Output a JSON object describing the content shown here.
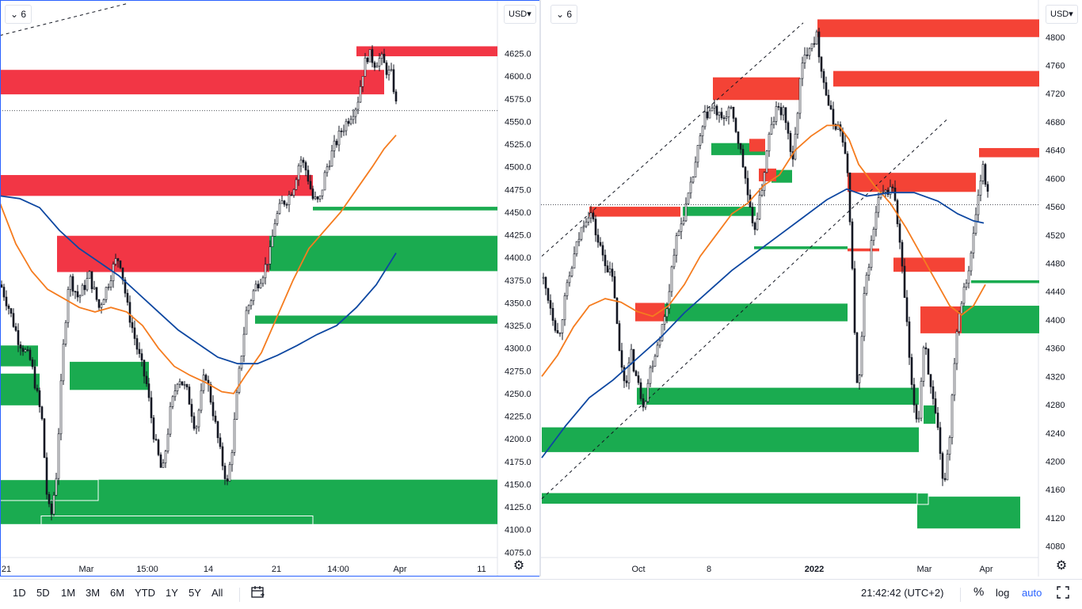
{
  "left_chart": {
    "interval": "6",
    "currency": "USD",
    "last_price_line": 4562,
    "chart_data": {
      "type": "candlestick",
      "y_ticks": [
        4075,
        4100,
        4125,
        4150,
        4175,
        4200,
        4225,
        4250,
        4275,
        4300,
        4325,
        4350,
        4375,
        4400,
        4425,
        4450,
        4475,
        4500,
        4525,
        4550,
        4575,
        4600,
        4625
      ],
      "ylim": [
        4070,
        4650
      ],
      "x_ticks": [
        "21",
        "Mar",
        "15:00",
        "14",
        "21",
        "14:00",
        "Apr",
        "11"
      ],
      "price_path": [
        [
          0,
          4370
        ],
        [
          10,
          4345
        ],
        [
          22,
          4310
        ],
        [
          38,
          4285
        ],
        [
          52,
          4220
        ],
        [
          58,
          4140
        ],
        [
          63,
          4110
        ],
        [
          70,
          4160
        ],
        [
          78,
          4290
        ],
        [
          86,
          4380
        ],
        [
          98,
          4355
        ],
        [
          112,
          4380
        ],
        [
          124,
          4345
        ],
        [
          135,
          4370
        ],
        [
          144,
          4395
        ],
        [
          150,
          4400
        ],
        [
          160,
          4345
        ],
        [
          172,
          4300
        ],
        [
          184,
          4260
        ],
        [
          194,
          4200
        ],
        [
          204,
          4160
        ],
        [
          214,
          4230
        ],
        [
          224,
          4270
        ],
        [
          236,
          4250
        ],
        [
          246,
          4210
        ],
        [
          258,
          4275
        ],
        [
          268,
          4230
        ],
        [
          278,
          4180
        ],
        [
          286,
          4150
        ],
        [
          292,
          4190
        ],
        [
          300,
          4265
        ],
        [
          310,
          4340
        ],
        [
          320,
          4365
        ],
        [
          332,
          4385
        ],
        [
          340,
          4405
        ],
        [
          346,
          4440
        ],
        [
          355,
          4460
        ],
        [
          362,
          4465
        ],
        [
          370,
          4480
        ],
        [
          378,
          4510
        ],
        [
          386,
          4495
        ],
        [
          394,
          4465
        ],
        [
          402,
          4460
        ],
        [
          410,
          4495
        ],
        [
          420,
          4520
        ],
        [
          430,
          4540
        ],
        [
          440,
          4555
        ],
        [
          450,
          4570
        ],
        [
          458,
          4610
        ],
        [
          464,
          4625
        ],
        [
          472,
          4615
        ],
        [
          480,
          4620
        ],
        [
          488,
          4605
        ],
        [
          494,
          4600
        ],
        [
          500,
          4562
        ]
      ],
      "ma_orange": [
        [
          0,
          4460
        ],
        [
          20,
          4415
        ],
        [
          40,
          4385
        ],
        [
          60,
          4365
        ],
        [
          80,
          4355
        ],
        [
          100,
          4345
        ],
        [
          120,
          4340
        ],
        [
          140,
          4345
        ],
        [
          160,
          4340
        ],
        [
          180,
          4325
        ],
        [
          200,
          4300
        ],
        [
          220,
          4280
        ],
        [
          240,
          4270
        ],
        [
          260,
          4262
        ],
        [
          280,
          4252
        ],
        [
          295,
          4250
        ],
        [
          310,
          4270
        ],
        [
          330,
          4295
        ],
        [
          350,
          4335
        ],
        [
          370,
          4375
        ],
        [
          390,
          4410
        ],
        [
          410,
          4430
        ],
        [
          430,
          4450
        ],
        [
          450,
          4475
        ],
        [
          470,
          4500
        ],
        [
          485,
          4520
        ],
        [
          500,
          4535
        ]
      ],
      "ma_blue": [
        [
          0,
          4468
        ],
        [
          25,
          4465
        ],
        [
          50,
          4455
        ],
        [
          75,
          4430
        ],
        [
          100,
          4410
        ],
        [
          125,
          4395
        ],
        [
          150,
          4380
        ],
        [
          175,
          4360
        ],
        [
          200,
          4340
        ],
        [
          225,
          4320
        ],
        [
          250,
          4305
        ],
        [
          275,
          4290
        ],
        [
          300,
          4283
        ],
        [
          325,
          4283
        ],
        [
          350,
          4292
        ],
        [
          375,
          4303
        ],
        [
          400,
          4315
        ],
        [
          425,
          4325
        ],
        [
          450,
          4345
        ],
        [
          475,
          4370
        ],
        [
          500,
          4405
        ]
      ],
      "supply_zones": [
        {
          "x1": 450,
          "x2": 628,
          "lo": 4622,
          "hi": 4633
        },
        {
          "x1": 0,
          "x2": 485,
          "lo": 4580,
          "hi": 4607
        },
        {
          "x1": 0,
          "x2": 395,
          "lo": 4468,
          "hi": 4491
        },
        {
          "x1": 72,
          "x2": 340,
          "lo": 4384,
          "hi": 4424
        }
      ],
      "demand_zones": [
        {
          "x1": 340,
          "x2": 628,
          "lo": 4385,
          "hi": 4424
        },
        {
          "x1": 395,
          "x2": 628,
          "lo": 4452,
          "hi": 4456
        },
        {
          "x1": 322,
          "x2": 628,
          "lo": 4327,
          "hi": 4336
        },
        {
          "x1": 0,
          "x2": 48,
          "lo": 4280,
          "hi": 4303
        },
        {
          "x1": 88,
          "x2": 188,
          "lo": 4254,
          "hi": 4285
        },
        {
          "x1": 0,
          "x2": 50,
          "lo": 4237,
          "hi": 4272
        },
        {
          "x1": 0,
          "x2": 628,
          "lo": 4106,
          "hi": 4155
        }
      ],
      "outline_boxes": [
        {
          "x1": 0,
          "x2": 124,
          "lo": 4132,
          "hi": 4155
        },
        {
          "x1": 52,
          "x2": 395,
          "lo": 4101,
          "hi": 4115
        }
      ],
      "trend_lines": [
        {
          "x1": 0,
          "y1": 4645,
          "x2": 160,
          "y2": 4680
        }
      ]
    }
  },
  "right_chart": {
    "interval": "6",
    "currency": "USD",
    "last_price_line": 4563,
    "chart_data": {
      "type": "candlestick",
      "y_ticks": [
        4080,
        4120,
        4160,
        4200,
        4240,
        4280,
        4320,
        4360,
        4400,
        4440,
        4480,
        4520,
        4560,
        4600,
        4640,
        4680,
        4720,
        4760,
        4800
      ],
      "ylim": [
        4065,
        4830
      ],
      "x_ticks": [
        "Oct",
        "8",
        "2022",
        "Mar",
        "Apr"
      ],
      "price_path": [
        [
          0,
          4460
        ],
        [
          10,
          4420
        ],
        [
          20,
          4375
        ],
        [
          30,
          4440
        ],
        [
          42,
          4500
        ],
        [
          52,
          4540
        ],
        [
          60,
          4555
        ],
        [
          70,
          4510
        ],
        [
          80,
          4480
        ],
        [
          90,
          4450
        ],
        [
          96,
          4360
        ],
        [
          104,
          4310
        ],
        [
          112,
          4350
        ],
        [
          120,
          4310
        ],
        [
          128,
          4280
        ],
        [
          136,
          4330
        ],
        [
          146,
          4370
        ],
        [
          156,
          4410
        ],
        [
          166,
          4500
        ],
        [
          176,
          4540
        ],
        [
          186,
          4580
        ],
        [
          196,
          4640
        ],
        [
          206,
          4690
        ],
        [
          216,
          4700
        ],
        [
          226,
          4680
        ],
        [
          236,
          4700
        ],
        [
          246,
          4660
        ],
        [
          256,
          4600
        ],
        [
          266,
          4520
        ],
        [
          276,
          4580
        ],
        [
          286,
          4660
        ],
        [
          296,
          4700
        ],
        [
          306,
          4690
        ],
        [
          316,
          4620
        ],
        [
          326,
          4750
        ],
        [
          336,
          4790
        ],
        [
          346,
          4800
        ],
        [
          356,
          4730
        ],
        [
          366,
          4680
        ],
        [
          376,
          4670
        ],
        [
          386,
          4600
        ],
        [
          392,
          4440
        ],
        [
          398,
          4280
        ],
        [
          406,
          4430
        ],
        [
          414,
          4500
        ],
        [
          424,
          4570
        ],
        [
          434,
          4580
        ],
        [
          442,
          4590
        ],
        [
          450,
          4520
        ],
        [
          458,
          4420
        ],
        [
          466,
          4300
        ],
        [
          474,
          4250
        ],
        [
          482,
          4380
        ],
        [
          490,
          4300
        ],
        [
          498,
          4250
        ],
        [
          506,
          4160
        ],
        [
          514,
          4240
        ],
        [
          522,
          4380
        ],
        [
          530,
          4440
        ],
        [
          540,
          4480
        ],
        [
          548,
          4560
        ],
        [
          556,
          4620
        ],
        [
          564,
          4563
        ]
      ],
      "ma_orange": [
        [
          0,
          4320
        ],
        [
          20,
          4350
        ],
        [
          40,
          4390
        ],
        [
          60,
          4420
        ],
        [
          80,
          4430
        ],
        [
          100,
          4425
        ],
        [
          120,
          4412
        ],
        [
          140,
          4405
        ],
        [
          160,
          4420
        ],
        [
          180,
          4450
        ],
        [
          200,
          4490
        ],
        [
          220,
          4520
        ],
        [
          240,
          4550
        ],
        [
          260,
          4565
        ],
        [
          280,
          4590
        ],
        [
          300,
          4605
        ],
        [
          320,
          4640
        ],
        [
          340,
          4660
        ],
        [
          360,
          4675
        ],
        [
          375,
          4675
        ],
        [
          388,
          4655
        ],
        [
          400,
          4620
        ],
        [
          420,
          4590
        ],
        [
          440,
          4565
        ],
        [
          460,
          4530
        ],
        [
          480,
          4490
        ],
        [
          500,
          4450
        ],
        [
          515,
          4420
        ],
        [
          530,
          4407
        ],
        [
          545,
          4420
        ],
        [
          560,
          4450
        ]
      ],
      "ma_blue": [
        [
          0,
          4205
        ],
        [
          30,
          4250
        ],
        [
          60,
          4290
        ],
        [
          90,
          4315
        ],
        [
          120,
          4345
        ],
        [
          150,
          4375
        ],
        [
          180,
          4410
        ],
        [
          210,
          4440
        ],
        [
          240,
          4470
        ],
        [
          270,
          4495
        ],
        [
          300,
          4520
        ],
        [
          330,
          4545
        ],
        [
          360,
          4570
        ],
        [
          385,
          4585
        ],
        [
          410,
          4575
        ],
        [
          440,
          4580
        ],
        [
          470,
          4580
        ],
        [
          500,
          4568
        ],
        [
          525,
          4550
        ],
        [
          545,
          4540
        ],
        [
          558,
          4537
        ]
      ],
      "supply_zones": [
        {
          "x1": 348,
          "x2": 628,
          "lo": 4800,
          "hi": 4825
        },
        {
          "x1": 368,
          "x2": 628,
          "lo": 4730,
          "hi": 4752
        },
        {
          "x1": 216,
          "x2": 326,
          "lo": 4711,
          "hi": 4743
        },
        {
          "x1": 552,
          "x2": 628,
          "lo": 4630,
          "hi": 4643
        },
        {
          "x1": 262,
          "x2": 282,
          "lo": 4638,
          "hi": 4656
        },
        {
          "x1": 274,
          "x2": 296,
          "lo": 4596,
          "hi": 4614
        },
        {
          "x1": 386,
          "x2": 548,
          "lo": 4581,
          "hi": 4608
        },
        {
          "x1": 60,
          "x2": 175,
          "lo": 4546,
          "hi": 4560
        },
        {
          "x1": 386,
          "x2": 426,
          "lo": 4497,
          "hi": 4501
        },
        {
          "x1": 444,
          "x2": 534,
          "lo": 4468,
          "hi": 4488
        },
        {
          "x1": 118,
          "x2": 155,
          "lo": 4398,
          "hi": 4424
        },
        {
          "x1": 478,
          "x2": 530,
          "lo": 4381,
          "hi": 4419
        }
      ],
      "demand_zones": [
        {
          "x1": 214,
          "x2": 282,
          "lo": 4633,
          "hi": 4650
        },
        {
          "x1": 178,
          "x2": 270,
          "lo": 4547,
          "hi": 4560
        },
        {
          "x1": 268,
          "x2": 386,
          "lo": 4500,
          "hi": 4504
        },
        {
          "x1": 290,
          "x2": 316,
          "lo": 4594,
          "hi": 4612
        },
        {
          "x1": 542,
          "x2": 628,
          "lo": 4452,
          "hi": 4456
        },
        {
          "x1": 155,
          "x2": 386,
          "lo": 4398,
          "hi": 4423
        },
        {
          "x1": 530,
          "x2": 628,
          "lo": 4381,
          "hi": 4420
        },
        {
          "x1": 120,
          "x2": 476,
          "lo": 4280,
          "hi": 4304
        },
        {
          "x1": 0,
          "x2": 476,
          "lo": 4213,
          "hi": 4248
        },
        {
          "x1": 482,
          "x2": 497,
          "lo": 4253,
          "hi": 4279
        },
        {
          "x1": 0,
          "x2": 488,
          "lo": 4140,
          "hi": 4155
        },
        {
          "x1": 474,
          "x2": 604,
          "lo": 4105,
          "hi": 4150
        }
      ],
      "outline_boxes": [
        {
          "x1": 474,
          "x2": 488,
          "lo": 4139,
          "hi": 4155
        }
      ],
      "trend_lines": [
        {
          "x1": 0,
          "y1": 4490,
          "x2": 330,
          "y2": 4820
        },
        {
          "x1": 0,
          "y1": 4147,
          "x2": 512,
          "y2": 4684
        }
      ]
    }
  },
  "bottom_toolbar": {
    "ranges": [
      "1D",
      "5D",
      "1M",
      "3M",
      "6M",
      "YTD",
      "1Y",
      "5Y",
      "All"
    ],
    "clock": "21:42:42 (UTC+2)",
    "percent": "%",
    "log": "log",
    "auto": "auto"
  },
  "colors": {
    "supply": "#f23645",
    "supply_right": "#f44336",
    "demand": "#1aab50",
    "ma_orange": "#f57c1f",
    "ma_blue": "#0d47a1",
    "active_border": "#2962ff",
    "accent": "#2962ff"
  },
  "icons": {
    "chevron": "chevron-down-icon",
    "settings": "gear-icon",
    "date_range": "calendar-range-icon",
    "fullscreen": "fullscreen-icon"
  }
}
